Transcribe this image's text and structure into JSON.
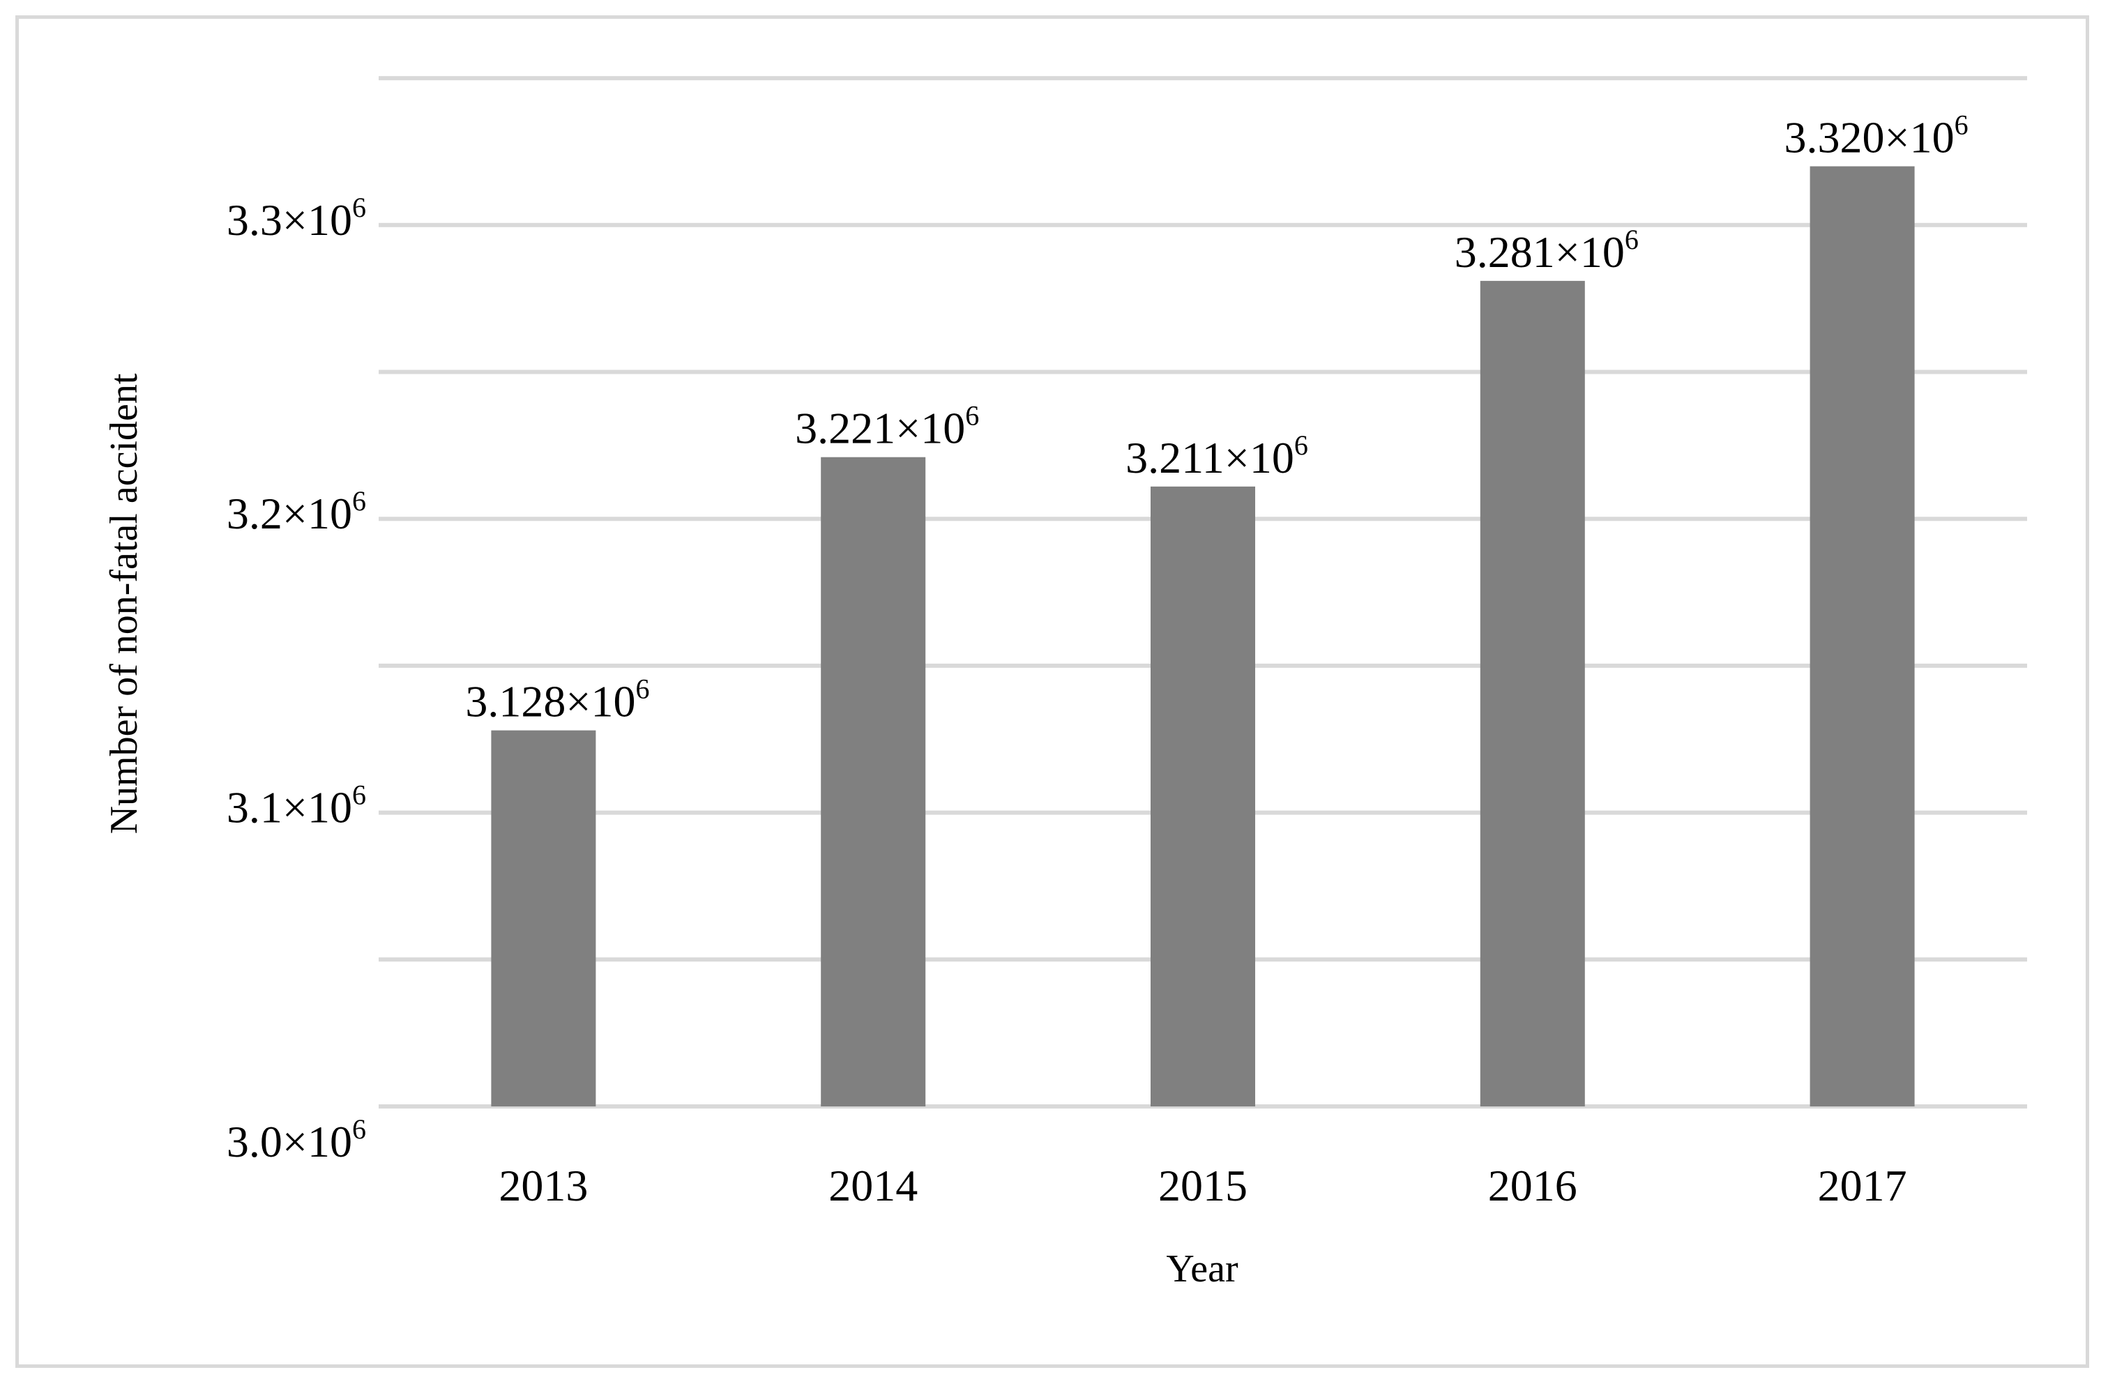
{
  "chart_data": {
    "type": "bar",
    "categories": [
      "2013",
      "2014",
      "2015",
      "2016",
      "2017"
    ],
    "values": [
      3128000,
      3221000,
      3211000,
      3281000,
      3320000
    ],
    "data_labels": [
      {
        "mantissa": "3.128×10",
        "exponent": "6"
      },
      {
        "mantissa": "3.221×10",
        "exponent": "6"
      },
      {
        "mantissa": "3.211×10",
        "exponent": "6"
      },
      {
        "mantissa": "3.281×10",
        "exponent": "6"
      },
      {
        "mantissa": "3.320×10",
        "exponent": "6"
      }
    ],
    "xlabel": "Year",
    "ylabel": "Number of non-fatal accident",
    "ylim": [
      3000000,
      3350000
    ],
    "gridline_values": [
      3000000,
      3050000,
      3100000,
      3150000,
      3200000,
      3250000,
      3300000,
      3350000
    ],
    "y_ticks": [
      {
        "value": 3000000,
        "mantissa": "3.0×10",
        "exponent": "6"
      },
      {
        "value": 3100000,
        "mantissa": "3.1×10",
        "exponent": "6"
      },
      {
        "value": 3200000,
        "mantissa": "3.2×10",
        "exponent": "6"
      },
      {
        "value": 3300000,
        "mantissa": "3.3×10",
        "exponent": "6"
      }
    ],
    "grid": true,
    "legend": "none",
    "colors": {
      "bar": "#808080",
      "grid": "#d9d9d9",
      "border": "#d9d9d9"
    }
  }
}
